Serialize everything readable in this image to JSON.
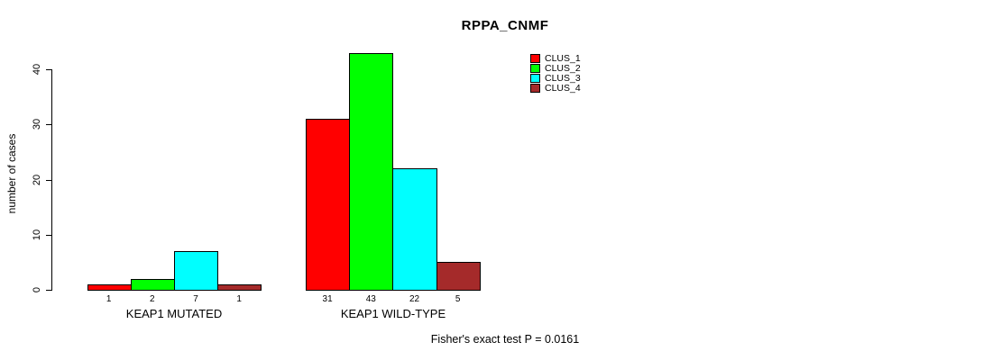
{
  "chart_data": {
    "type": "bar",
    "title": "RPPA_CNMF",
    "ylabel": "number of cases",
    "xlabel": "",
    "yticks": [
      0,
      10,
      20,
      30,
      40
    ],
    "ylim": [
      0,
      43
    ],
    "grid": false,
    "legend_position": "top-right",
    "series": [
      {
        "name": "CLUS_1",
        "color": "#FF0000"
      },
      {
        "name": "CLUS_2",
        "color": "#00FF00"
      },
      {
        "name": "CLUS_3",
        "color": "#00FFFF"
      },
      {
        "name": "CLUS_4",
        "color": "#A52A2A"
      }
    ],
    "groups": [
      {
        "label": "KEAP1 MUTATED",
        "values": [
          1,
          2,
          7,
          1
        ]
      },
      {
        "label": "KEAP1 WILD-TYPE",
        "values": [
          31,
          43,
          22,
          5
        ]
      }
    ],
    "bar_value_labels": true,
    "annotation": "Fisher's exact test P = 0.0161"
  }
}
